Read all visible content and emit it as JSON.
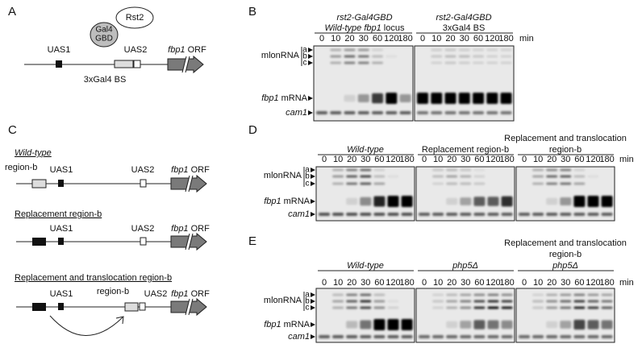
{
  "panel_a": {
    "letter": "A",
    "activator": "Rst2",
    "fusion": [
      "Gal4",
      "GBD"
    ],
    "uas1": "UAS1",
    "uas2": "UAS2",
    "orf_gene": "fbp1",
    "orf_suffix": "ORF",
    "binding_sites": "3xGal4 BS"
  },
  "panel_b": {
    "letter": "B",
    "time_unit": "min",
    "times": [
      "0",
      "10",
      "20",
      "30",
      "60",
      "120",
      "180"
    ],
    "rows": {
      "mlonrna": "mlonRNA",
      "species": [
        "a",
        "b",
        "c"
      ],
      "mrna_gene": "fbp1",
      "mrna_suffix": "mRNA",
      "control": "cam1"
    },
    "blots": [
      {
        "strain": "rst2-Gal4GBD",
        "locus_gene": "Wild-type fbp1",
        "locus_suffix": "locus"
      },
      {
        "strain": "rst2-Gal4GBD",
        "locus": "3xGal4 BS"
      }
    ]
  },
  "panel_c": {
    "letter": "C",
    "constructs": [
      {
        "title": "Wild-type",
        "region_b": "region-b",
        "uas1": "UAS1",
        "uas2": "UAS2",
        "orf_gene": "fbp1",
        "orf_suffix": "ORF"
      },
      {
        "title": "Replacement region-b",
        "uas1": "UAS1",
        "uas2": "UAS2",
        "orf_gene": "fbp1",
        "orf_suffix": "ORF"
      },
      {
        "title": "Replacement and translocation region-b",
        "uas1": "UAS1",
        "region_b": "region-b",
        "uas2": "UAS2",
        "orf_gene": "fbp1",
        "orf_suffix": "ORF"
      }
    ]
  },
  "panel_d": {
    "letter": "D",
    "time_unit": "min",
    "times": [
      "0",
      "10",
      "20",
      "30",
      "60",
      "120",
      "180"
    ],
    "rows": {
      "mlonrna": "mlonRNA",
      "species": [
        "a",
        "b",
        "c"
      ],
      "mrna_gene": "fbp1",
      "mrna_suffix": "mRNA",
      "control": "cam1"
    },
    "blots": [
      {
        "header": [
          "Wild-type"
        ]
      },
      {
        "header": [
          "Replacement region-b"
        ]
      },
      {
        "header": [
          "Replacement and translocation",
          "region-b"
        ]
      }
    ]
  },
  "panel_e": {
    "letter": "E",
    "time_unit": "min",
    "times": [
      "0",
      "10",
      "20",
      "30",
      "60",
      "120",
      "180"
    ],
    "rows": {
      "mlonrna": "mlonRNA",
      "species": [
        "a",
        "b",
        "c"
      ],
      "mrna_gene": "fbp1",
      "mrna_suffix": "mRNA",
      "control": "cam1"
    },
    "blots": [
      {
        "header": [
          "Wild-type"
        ]
      },
      {
        "header": [
          "php5Δ"
        ]
      },
      {
        "header": [
          "Replacement and translocation",
          "region-b",
          "php5Δ"
        ]
      }
    ]
  }
}
